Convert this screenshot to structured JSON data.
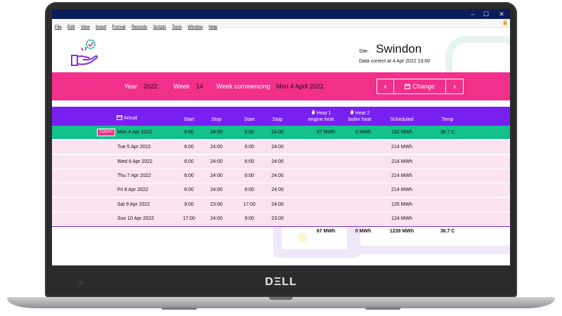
{
  "device": {
    "brand": "DΞLL"
  },
  "window": {
    "controls": [
      "–",
      "☐",
      "✕"
    ],
    "menu": [
      "File",
      "Edit",
      "View",
      "Insert",
      "Format",
      "Records",
      "Scripts",
      "Tools",
      "Window",
      "Help"
    ]
  },
  "header": {
    "site_label": "Site:",
    "site_name": "Swindon",
    "data_correct": "Data correct at 4 Apr 2022 13:00"
  },
  "filter": {
    "year_label": "Year",
    "year": "2022",
    "week_label": "Week",
    "week": "14",
    "week_commencing_label": "Week commencing",
    "week_commencing": "Mon 4 April 2022",
    "prev_icon": "‹",
    "change_label": "Change",
    "next_icon": "›"
  },
  "table": {
    "headers": {
      "actual": "Actual",
      "start1": "Start",
      "stop1": "Stop",
      "start2": "Start",
      "stop2": "Stop",
      "heat1_a": "Heat 1",
      "heat1_b": "engine heat",
      "heat2_a": "Heat 2",
      "heat2_b": "boiler heat",
      "scheduled": "Scheduled",
      "temp": "Temp"
    },
    "today_badge": "TODAY",
    "rows": [
      {
        "date": "Mon 4 Apr 2022",
        "start1": "6:00",
        "stop1": "24:00",
        "start2": "6:00",
        "stop2": "24:00",
        "heat1": "67 MWh",
        "heat2": "0 MWh",
        "scheduled": "132 MWh",
        "temp": "36.7 C"
      },
      {
        "date": "Tue 5 Apr 2022",
        "start1": "6:00",
        "stop1": "24:00",
        "start2": "6:00",
        "stop2": "24:00",
        "heat1": "",
        "heat2": "",
        "scheduled": "214 MWh",
        "temp": ""
      },
      {
        "date": "Wed 6 Apr 2022",
        "start1": "6:00",
        "stop1": "24:00",
        "start2": "6:00",
        "stop2": "24:00",
        "heat1": "",
        "heat2": "",
        "scheduled": "214 MWh",
        "temp": ""
      },
      {
        "date": "Thu 7 Apr 2022",
        "start1": "6:00",
        "stop1": "24:00",
        "start2": "6:00",
        "stop2": "24:00",
        "heat1": "",
        "heat2": "",
        "scheduled": "214 MWh",
        "temp": ""
      },
      {
        "date": "Fri 8 Apr 2022",
        "start1": "6:00",
        "stop1": "24:00",
        "start2": "6:00",
        "stop2": "24:00",
        "heat1": "",
        "heat2": "",
        "scheduled": "214 MWh",
        "temp": ""
      },
      {
        "date": "Sat 9 Apr 2022",
        "start1": "9:00",
        "stop1": "23:00",
        "start2": "17:00",
        "stop2": "24:00",
        "heat1": "",
        "heat2": "",
        "scheduled": "125 MWh",
        "temp": ""
      },
      {
        "date": "Sun 10 Apr 2022",
        "start1": "17:00",
        "stop1": "24:00",
        "start2": "9:00",
        "stop2": "23:00",
        "heat1": "",
        "heat2": "",
        "scheduled": "124 MWh",
        "temp": ""
      }
    ],
    "totals": {
      "heat1": "67 MWh",
      "heat2": "0 MWh",
      "scheduled": "1239 MWh",
      "temp": "36.7 C"
    }
  },
  "colors": {
    "titlebar": "#0b1c5a",
    "accent_pink": "#f22f8a",
    "header_purple": "#7a1ff2",
    "today_green": "#14c08c",
    "row_pink": "#fbe3f1"
  }
}
